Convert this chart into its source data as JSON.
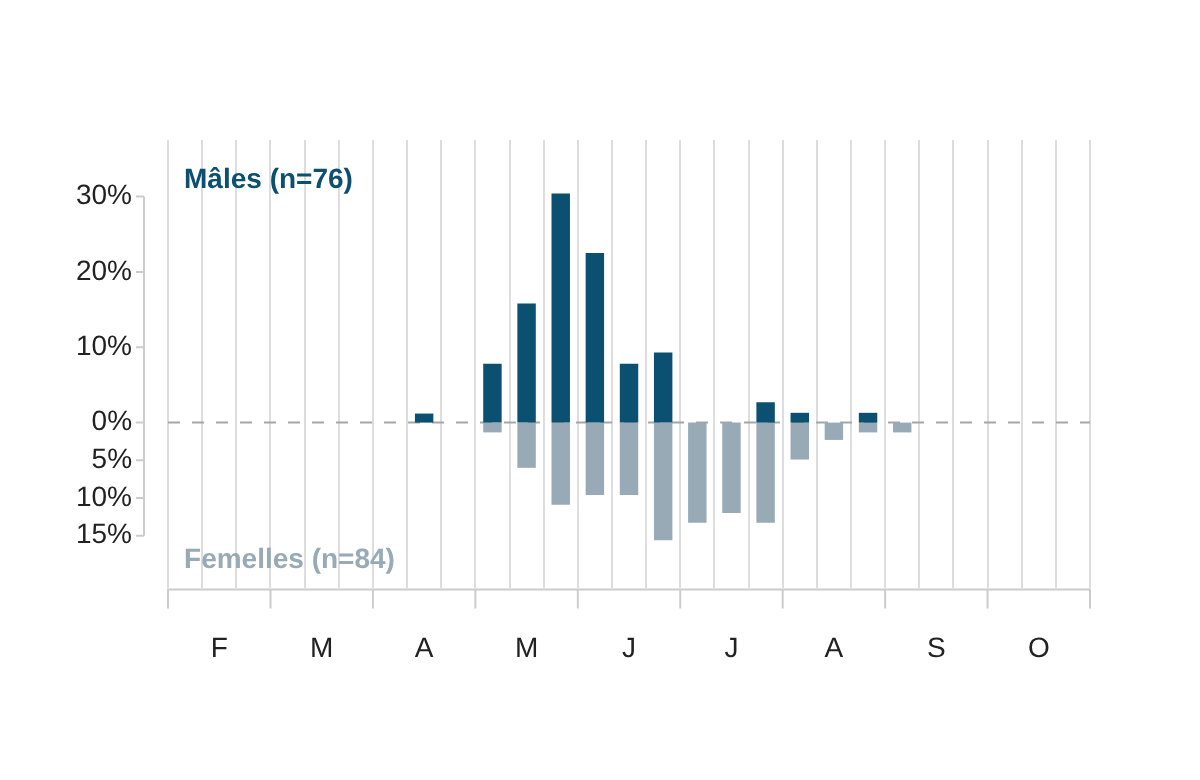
{
  "chart_data": {
    "type": "bar",
    "stacked": true,
    "categories": [
      null,
      "F",
      null,
      null,
      "M",
      null,
      null,
      "A",
      null,
      null,
      "M",
      null,
      null,
      "J",
      null,
      null,
      "J",
      null,
      null,
      "A",
      null,
      null,
      "S",
      null,
      null,
      "O",
      null
    ],
    "series": [
      {
        "name": "Mâles (n=76)",
        "color": "#0b4f71",
        "values": [
          null,
          null,
          null,
          null,
          null,
          null,
          null,
          1.2,
          null,
          7.8,
          15.8,
          30.4,
          22.5,
          7.8,
          9.3,
          null,
          null,
          2.7,
          1.3,
          null,
          1.3,
          null,
          null,
          null,
          null,
          null,
          null
        ]
      },
      {
        "name": "Femelles (n=84)",
        "color": "#98aab5",
        "values": [
          null,
          null,
          null,
          null,
          null,
          null,
          null,
          null,
          null,
          -1.3,
          -6.0,
          -10.9,
          -9.6,
          -9.6,
          -15.6,
          -13.3,
          -12.0,
          -13.3,
          -4.9,
          -2.3,
          -1.3,
          -1.3,
          null,
          null,
          null,
          null,
          null
        ]
      }
    ],
    "ylim": [
      -22,
      37.5
    ],
    "yticks": [
      {
        "value": -15,
        "label": "15%"
      },
      {
        "value": -10,
        "label": "10%"
      },
      {
        "value": -5,
        "label": "5%"
      },
      {
        "value": 0,
        "label": "0%"
      },
      {
        "value": 10,
        "label": "10%"
      },
      {
        "value": 20,
        "label": "20%"
      },
      {
        "value": 30,
        "label": "30%"
      }
    ],
    "grid": "x",
    "legend": false,
    "ref_lines": [
      {
        "axis": "y",
        "value": 0,
        "color": "#a6a6a6",
        "line_style": "dashed"
      }
    ]
  }
}
